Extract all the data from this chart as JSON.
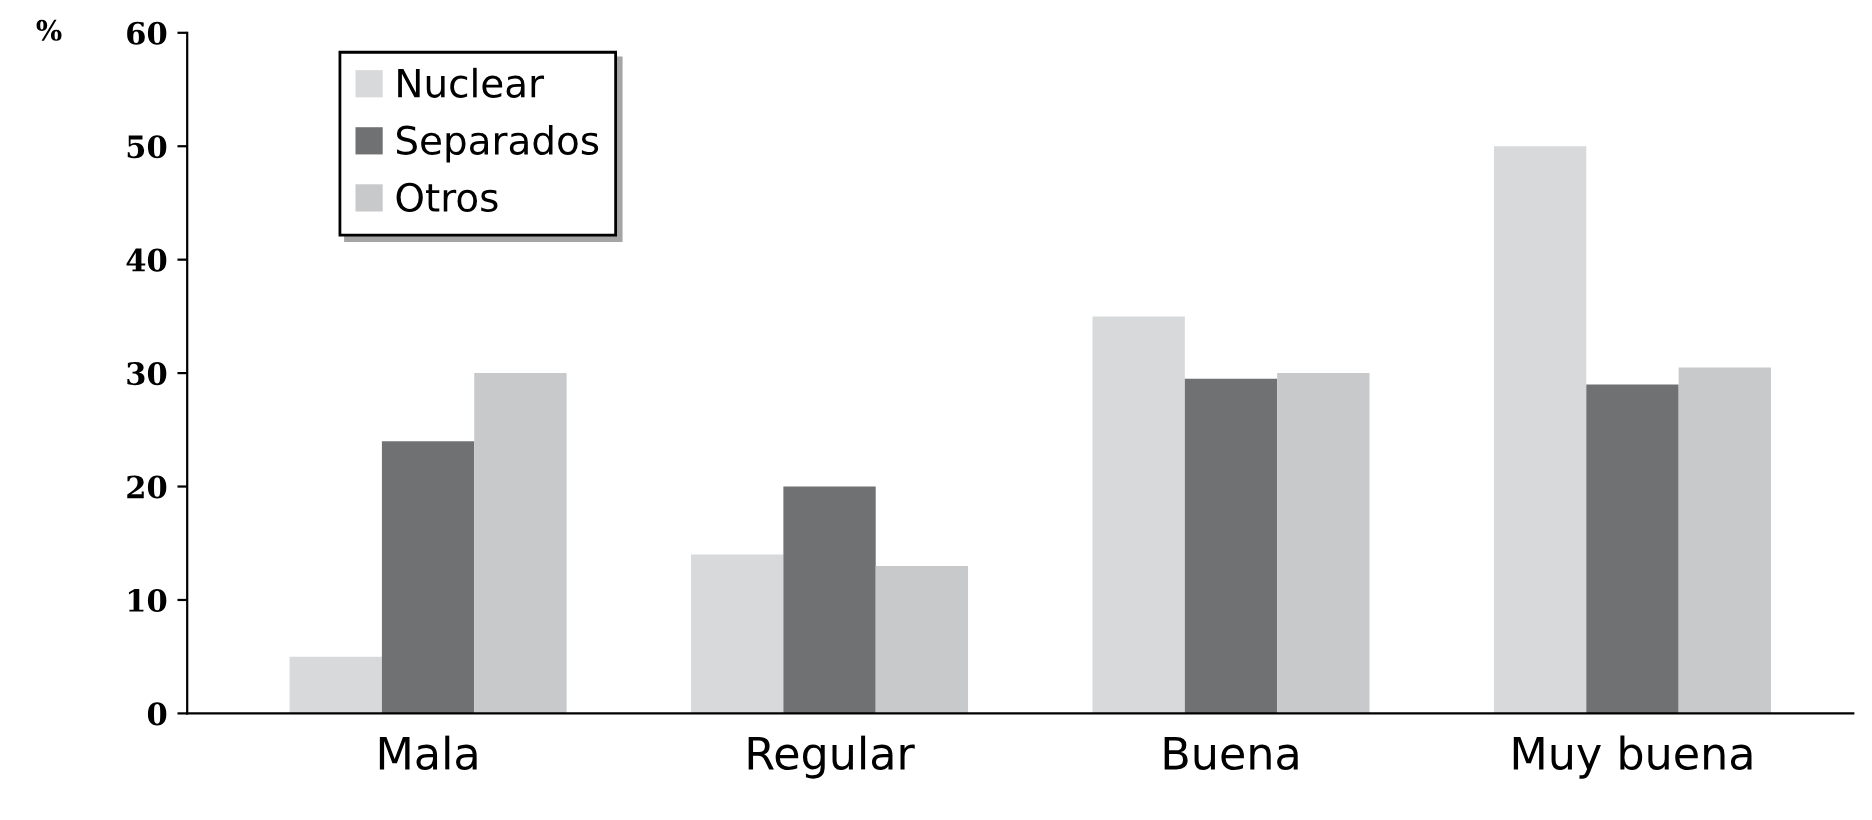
{
  "chart_data": {
    "type": "bar",
    "ylabel": "%",
    "categories": [
      "Mala",
      "Regular",
      "Buena",
      "Muy buena"
    ],
    "series": [
      {
        "name": "Nuclear",
        "color": "#d8d9db",
        "values": [
          5,
          14,
          35,
          50
        ]
      },
      {
        "name": "Separados",
        "color": "#707172",
        "values": [
          24,
          20,
          29.5,
          29
        ]
      },
      {
        "name": "Otros",
        "color": "#c8c9cb",
        "values": [
          30,
          13,
          30,
          30.5
        ]
      }
    ],
    "ylim": [
      0,
      60
    ],
    "yticks": [
      0,
      10,
      20,
      30,
      40,
      50,
      60
    ],
    "grid": false,
    "legend": "top left"
  }
}
